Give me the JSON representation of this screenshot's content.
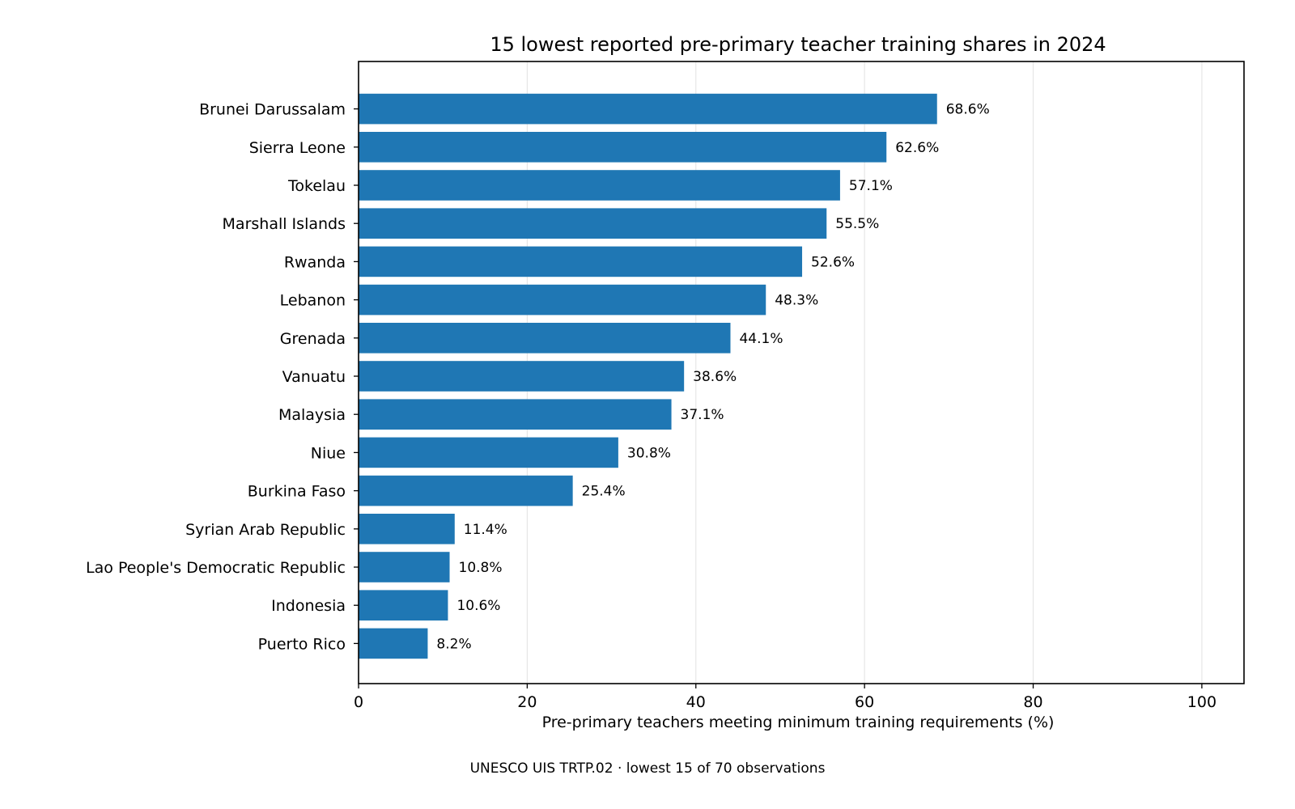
{
  "chart_data": {
    "type": "bar",
    "orientation": "horizontal",
    "title": "15 lowest reported pre-primary teacher training shares in 2024",
    "xlabel": "Pre-primary teachers meeting minimum training requirements (%)",
    "ylabel": "",
    "xlim": [
      0,
      105
    ],
    "xticks": [
      0,
      20,
      40,
      60,
      80,
      100
    ],
    "grid": "vertical",
    "bar_color": "#1f77b4",
    "value_label_suffix": "%",
    "footnote": "UNESCO UIS TRTP.02 · lowest 15 of 70 observations",
    "categories": [
      "Brunei Darussalam",
      "Sierra Leone",
      "Tokelau",
      "Marshall Islands",
      "Rwanda",
      "Lebanon",
      "Grenada",
      "Vanuatu",
      "Malaysia",
      "Niue",
      "Burkina Faso",
      "Syrian Arab Republic",
      "Lao People's Democratic Republic",
      "Indonesia",
      "Puerto Rico"
    ],
    "values": [
      68.6,
      62.6,
      57.1,
      55.5,
      52.6,
      48.3,
      44.1,
      38.6,
      37.1,
      30.8,
      25.4,
      11.4,
      10.8,
      10.6,
      8.2
    ]
  }
}
